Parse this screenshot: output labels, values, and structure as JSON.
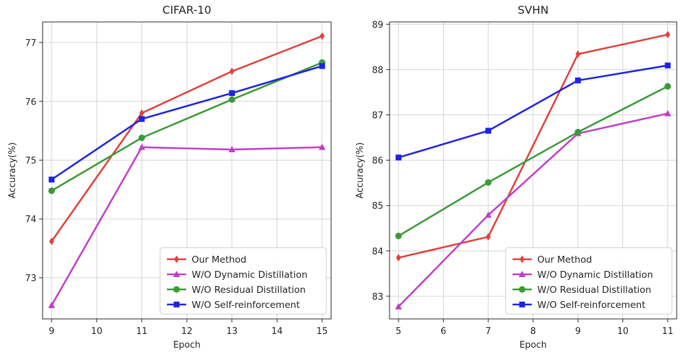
{
  "chart_data": [
    {
      "type": "line",
      "title": "CIFAR-10",
      "xlabel": "Epoch",
      "ylabel": "Accuracy(%)",
      "xlim": [
        8.8,
        15.2
      ],
      "ylim": [
        72.3,
        77.35
      ],
      "xticks": [
        9,
        10,
        11,
        12,
        13,
        14,
        15
      ],
      "yticks": [
        73,
        74,
        75,
        76,
        77
      ],
      "grid": true,
      "legend_position": "bottom-right",
      "x": [
        9,
        11,
        13,
        15
      ],
      "series": [
        {
          "name": "Our Method",
          "color": "#e0413a",
          "marker": "diamond",
          "values": [
            73.62,
            75.8,
            76.51,
            77.11
          ]
        },
        {
          "name": "W/O Dynamic Distillation",
          "color": "#c23ec7",
          "marker": "triangle",
          "values": [
            72.53,
            75.22,
            75.18,
            75.22
          ]
        },
        {
          "name": "W/O Residual Distillation",
          "color": "#3a9a35",
          "marker": "circle",
          "values": [
            74.48,
            75.38,
            76.03,
            76.66
          ]
        },
        {
          "name": "W/O Self-reinforcement",
          "color": "#1f23e6",
          "marker": "square",
          "values": [
            74.67,
            75.7,
            76.14,
            76.6
          ]
        }
      ]
    },
    {
      "type": "line",
      "title": "SVHN",
      "xlabel": "Epoch",
      "ylabel": "Accuracy(%)",
      "xlim": [
        4.8,
        11.2
      ],
      "ylim": [
        82.5,
        89.05
      ],
      "xticks": [
        5,
        6,
        7,
        8,
        9,
        10,
        11
      ],
      "yticks": [
        83,
        84,
        85,
        86,
        87,
        88,
        89
      ],
      "grid": true,
      "legend_position": "bottom-right",
      "x": [
        5,
        7,
        9,
        11
      ],
      "series": [
        {
          "name": "Our Method",
          "color": "#e0413a",
          "marker": "diamond",
          "values": [
            83.85,
            84.31,
            88.34,
            88.77
          ]
        },
        {
          "name": "W/O Dynamic Distillation",
          "color": "#c23ec7",
          "marker": "triangle",
          "values": [
            82.77,
            84.79,
            86.59,
            87.03
          ]
        },
        {
          "name": "W/O Residual Distillation",
          "color": "#3a9a35",
          "marker": "circle",
          "values": [
            84.33,
            85.51,
            86.62,
            87.63
          ]
        },
        {
          "name": "W/O Self-reinforcement",
          "color": "#1f23e6",
          "marker": "square",
          "values": [
            86.06,
            86.65,
            87.76,
            88.09
          ]
        }
      ]
    }
  ]
}
